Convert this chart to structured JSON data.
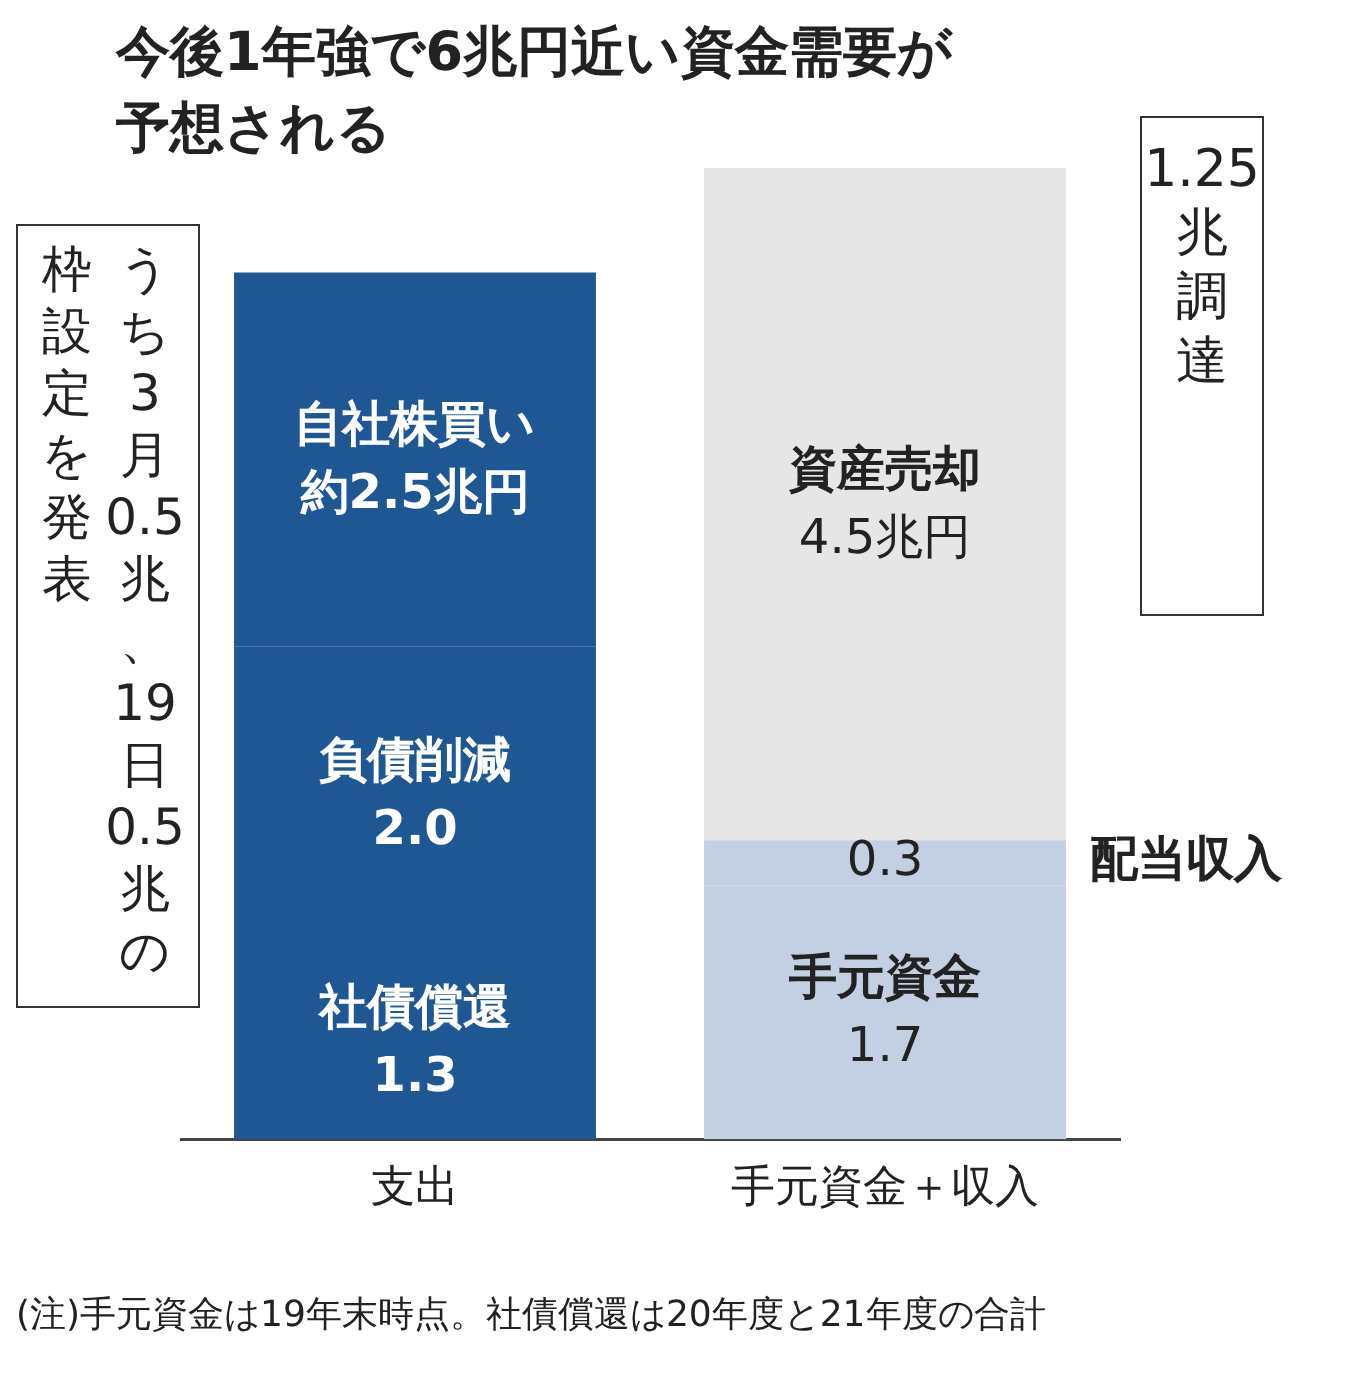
{
  "chart_data": {
    "type": "bar",
    "title": "今後1年強で6兆円近い資金需要が予想される",
    "categories": [
      "支出",
      "手元資金＋収入"
    ],
    "stacked": true,
    "tick_labels": "x",
    "series": [
      {
        "colors": [
          "#1f5794",
          "#c3d0e4"
        ],
        "values": [
          1.3,
          1.7
        ],
        "value_labels": [
          "1.3",
          "1.7"
        ]
      },
      {
        "colors": [
          "#1f5794",
          "#c3d0e4"
        ],
        "values": [
          2.0,
          0.3
        ],
        "value_labels": [
          "2.0",
          "0.3"
        ]
      },
      {
        "colors": [
          "#1f5794",
          "#e6e6e6"
        ],
        "values": [
          2.5,
          4.5
        ],
        "value_labels": [
          "約2.5兆円",
          "4.5兆円"
        ]
      }
    ],
    "annotations": [
      "社債償還",
      "手元資金",
      "負債削減",
      "配当収入",
      "自社株買い",
      "資産売却",
      "うち3月0.5兆、19日0.5兆の",
      "枠設定を発表",
      "1.25兆調達",
      "(注)手元資金は19年末時点。社債償還は20年度と21年度の合計"
    ]
  }
}
